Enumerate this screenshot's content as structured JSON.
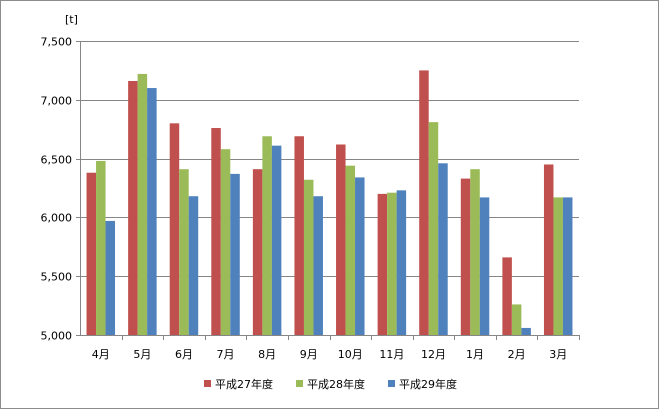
{
  "chart_data": {
    "type": "bar",
    "unit_label": "[t]",
    "categories": [
      "4月",
      "5月",
      "6月",
      "7月",
      "8月",
      "9月",
      "10月",
      "11月",
      "12月",
      "1月",
      "2月",
      "3月"
    ],
    "ylim": [
      5000,
      7500
    ],
    "yticks": [
      5000,
      5500,
      6000,
      6500,
      7000,
      7500
    ],
    "ytick_labels": [
      "5,000",
      "5,500",
      "6,000",
      "6,500",
      "7,000",
      "7,500"
    ],
    "grid": true,
    "legend_position": "bottom",
    "series": [
      {
        "name": "平成27年度",
        "color": "#c0504d",
        "values": [
          6380,
          7160,
          6800,
          6760,
          6410,
          6690,
          6620,
          6200,
          7250,
          6330,
          5660,
          6450
        ]
      },
      {
        "name": "平成28年度",
        "color": "#9bbb59",
        "values": [
          6480,
          7220,
          6410,
          6580,
          6690,
          6320,
          6440,
          6210,
          6810,
          6410,
          5260,
          6170
        ]
      },
      {
        "name": "平成29年度",
        "color": "#4f81bd",
        "values": [
          5970,
          7100,
          6180,
          6370,
          6610,
          6180,
          6340,
          6230,
          6460,
          6170,
          5060,
          6170
        ]
      }
    ]
  }
}
